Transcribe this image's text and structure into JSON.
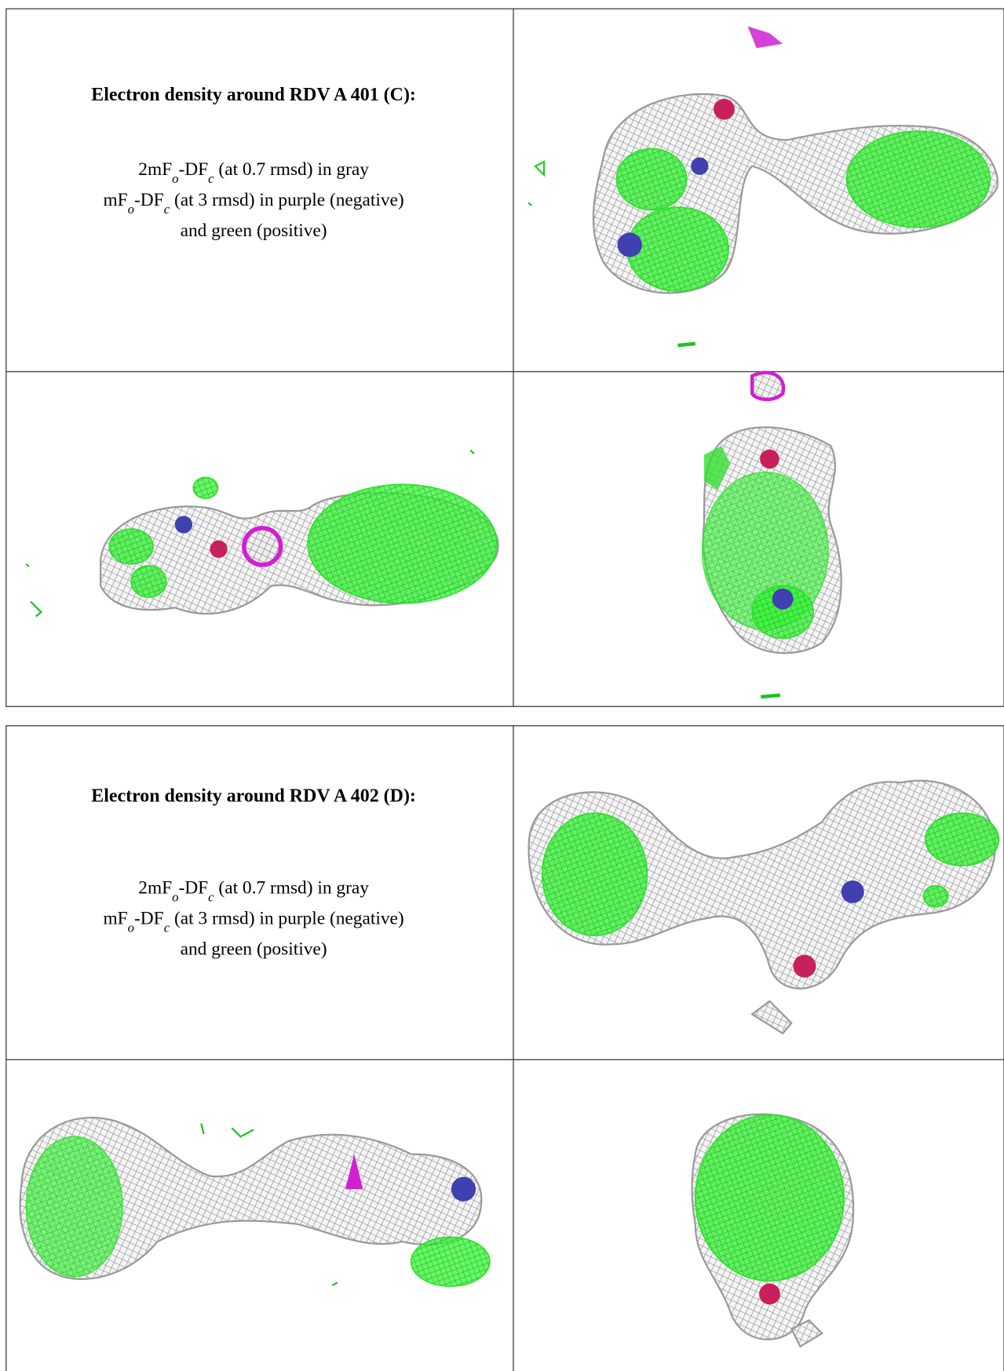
{
  "tables": [
    {
      "title": "Electron density around RDV A 401 (C):",
      "lines": [
        [
          {
            "text": "2mF"
          },
          {
            "sub": "o"
          },
          {
            "text": "-DF"
          },
          {
            "sub": "c"
          },
          {
            "text": " (at 0.7 rmsd) in gray"
          }
        ],
        [
          {
            "text": "mF"
          },
          {
            "sub": "o"
          },
          {
            "text": "-DF"
          },
          {
            "sub": "c"
          },
          {
            "text": " (at 3 rmsd) in purple (negative)"
          }
        ],
        [
          {
            "text": "and green (positive)"
          }
        ]
      ]
    },
    {
      "title": "Electron density around RDV A 402 (D):",
      "lines": [
        [
          {
            "text": "2mF"
          },
          {
            "sub": "o"
          },
          {
            "text": "-DF"
          },
          {
            "sub": "c"
          },
          {
            "text": " (at 0.7 rmsd) in gray"
          }
        ],
        [
          {
            "text": "mF"
          },
          {
            "sub": "o"
          },
          {
            "text": "-DF"
          },
          {
            "sub": "c"
          },
          {
            "text": " (at 3 rmsd) in purple (negative)"
          }
        ],
        [
          {
            "text": "and green (positive)"
          }
        ]
      ]
    }
  ]
}
